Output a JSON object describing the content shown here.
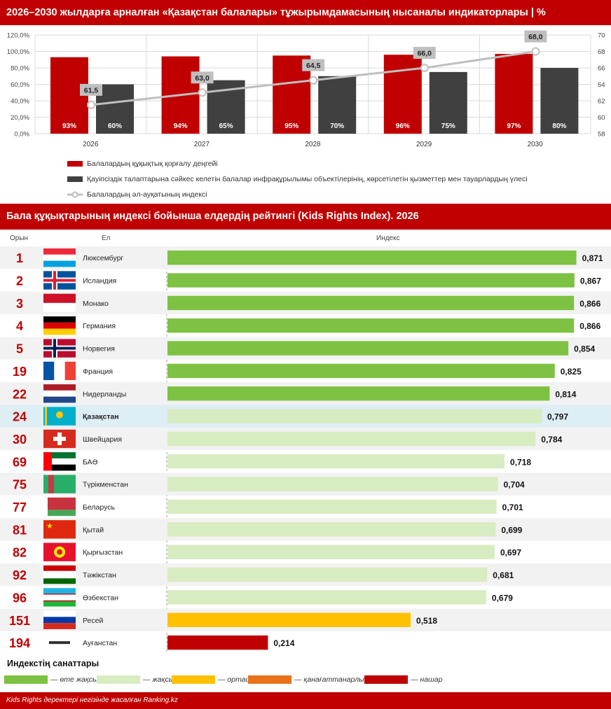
{
  "header_top": "2026–2030 жылдарға арналған «Қазақстан балалары» тұжырымдамасының нысаналы индикаторлары | %",
  "header_ranking": "Бала құқықтарының индексі бойынша елдердің рейтингі (Kids Rights Index). 2026",
  "footer": "Kids Rights деректері негізінде жасалған Ranking.kz",
  "legend_top": [
    {
      "label": "Балалардың құқықтық қорғалу деңгейі",
      "color": "#c00000"
    },
    {
      "label": "Қауіпсіздік талаптарына сәйкес келетін балалар инфрақұрылымы объектілерінің, көрсетілетін қызметтер мен тауарлардың үлесі",
      "color": "#404040"
    },
    {
      "label": "Балалардың әл-ауқатының индексі",
      "color": "#bfbfbf"
    }
  ],
  "chart_data": [
    {
      "type": "bar",
      "categories": [
        "2026",
        "2027",
        "2028",
        "2029",
        "2030"
      ],
      "series": [
        {
          "name": "Балалардың құқықтық қорғалу деңгейі",
          "type": "bar",
          "axis": "left",
          "color": "#c00000",
          "values": [
            93,
            94,
            95,
            96,
            97
          ],
          "labels": [
            "93%",
            "94%",
            "95%",
            "96%",
            "97%"
          ]
        },
        {
          "name": "Қауіпсіздік талаптарына сәйкес келетін балалар инфрақұрылымы объектілерінің, көрсетілетін қызметтер мен тауарлардың үлесі",
          "type": "bar",
          "axis": "left",
          "color": "#404040",
          "values": [
            60,
            65,
            70,
            75,
            80
          ],
          "labels": [
            "60%",
            "65%",
            "70%",
            "75%",
            "80%"
          ]
        },
        {
          "name": "Балалардың әл-ауқатының индексі",
          "type": "line",
          "axis": "right",
          "color": "#bfbfbf",
          "values": [
            61.5,
            63.0,
            64.5,
            66.0,
            68.0
          ],
          "labels": [
            "61,5",
            "63,0",
            "64,5",
            "66,0",
            "68,0"
          ]
        }
      ],
      "ylim": [
        0,
        120
      ],
      "y_ticks": [
        "0,0%",
        "20,0%",
        "40,0%",
        "60,0%",
        "80,0%",
        "100,0%",
        "120,0%"
      ],
      "y2lim": [
        58,
        70
      ],
      "y2_ticks": [
        "58",
        "60",
        "62",
        "64",
        "66",
        "68",
        "70"
      ],
      "grid": true,
      "legend": "bottom"
    },
    {
      "type": "bar",
      "orientation": "horizontal",
      "columns": {
        "rank": "Орын",
        "country": "Ел",
        "index": "Индекс"
      },
      "xlim": [
        0,
        0.9
      ],
      "highlight": "Қазақстан",
      "rows": [
        {
          "rank": "1",
          "country": "Люксембург",
          "flag": "luxembourg-flag",
          "value": 0.871,
          "label": "0,871",
          "category": "very_good"
        },
        {
          "rank": "2",
          "country": "Исландия",
          "flag": "iceland-flag",
          "value": 0.867,
          "label": "0,867",
          "category": "very_good"
        },
        {
          "rank": "3",
          "country": "Монако",
          "flag": "monaco-flag",
          "value": 0.866,
          "label": "0,866",
          "category": "very_good"
        },
        {
          "rank": "4",
          "country": "Германия",
          "flag": "germany-flag",
          "value": 0.866,
          "label": "0,866",
          "category": "very_good"
        },
        {
          "rank": "5",
          "country": "Норвегия",
          "flag": "norway-flag",
          "value": 0.854,
          "label": "0,854",
          "category": "very_good"
        },
        {
          "rank": "19",
          "country": "Франция",
          "flag": "france-flag",
          "value": 0.825,
          "label": "0,825",
          "category": "very_good"
        },
        {
          "rank": "22",
          "country": "Нидерланды",
          "flag": "netherlands-flag",
          "value": 0.814,
          "label": "0,814",
          "category": "very_good"
        },
        {
          "rank": "24",
          "country": "Қазақстан",
          "flag": "kazakhstan-flag",
          "value": 0.797,
          "label": "0,797",
          "category": "good"
        },
        {
          "rank": "30",
          "country": "Швейцария",
          "flag": "switzerland-flag",
          "value": 0.784,
          "label": "0,784",
          "category": "good"
        },
        {
          "rank": "69",
          "country": "БАӘ",
          "flag": "uae-flag",
          "value": 0.718,
          "label": "0,718",
          "category": "good"
        },
        {
          "rank": "75",
          "country": "Түрікменстан",
          "flag": "turkmenistan-flag",
          "value": 0.704,
          "label": "0,704",
          "category": "good"
        },
        {
          "rank": "77",
          "country": "Беларусь",
          "flag": "belarus-flag",
          "value": 0.701,
          "label": "0,701",
          "category": "good"
        },
        {
          "rank": "81",
          "country": "Қытай",
          "flag": "china-flag",
          "value": 0.699,
          "label": "0,699",
          "category": "good"
        },
        {
          "rank": "82",
          "country": "Қырғызстан",
          "flag": "kyrgyzstan-flag",
          "value": 0.697,
          "label": "0,697",
          "category": "good"
        },
        {
          "rank": "92",
          "country": "Тәжікстан",
          "flag": "tajikistan-flag",
          "value": 0.681,
          "label": "0,681",
          "category": "good"
        },
        {
          "rank": "96",
          "country": "Өзбекстан",
          "flag": "uzbekistan-flag",
          "value": 0.679,
          "label": "0,679",
          "category": "good"
        },
        {
          "rank": "151",
          "country": "Ресей",
          "flag": "russia-flag",
          "value": 0.518,
          "label": "0,518",
          "category": "average"
        },
        {
          "rank": "194",
          "country": "Ауғанстан",
          "flag": "afghanistan-flag",
          "value": 0.214,
          "label": "0,214",
          "category": "poor"
        }
      ]
    }
  ],
  "categories_title": "Индекстің санаттары",
  "categories": [
    {
      "key": "very_good",
      "label": "— өте жақсы",
      "color": "#7dc242"
    },
    {
      "key": "good",
      "label": "— жақсы",
      "color": "#d7ecc0"
    },
    {
      "key": "average",
      "label": "— орташа",
      "color": "#ffc000"
    },
    {
      "key": "satisfactory",
      "label": "— қанағаттанарлық",
      "color": "#e8731c"
    },
    {
      "key": "poor",
      "label": "— нашар",
      "color": "#c00000"
    }
  ],
  "highlight_color": "#deeef5",
  "rank_color": "#c00000"
}
